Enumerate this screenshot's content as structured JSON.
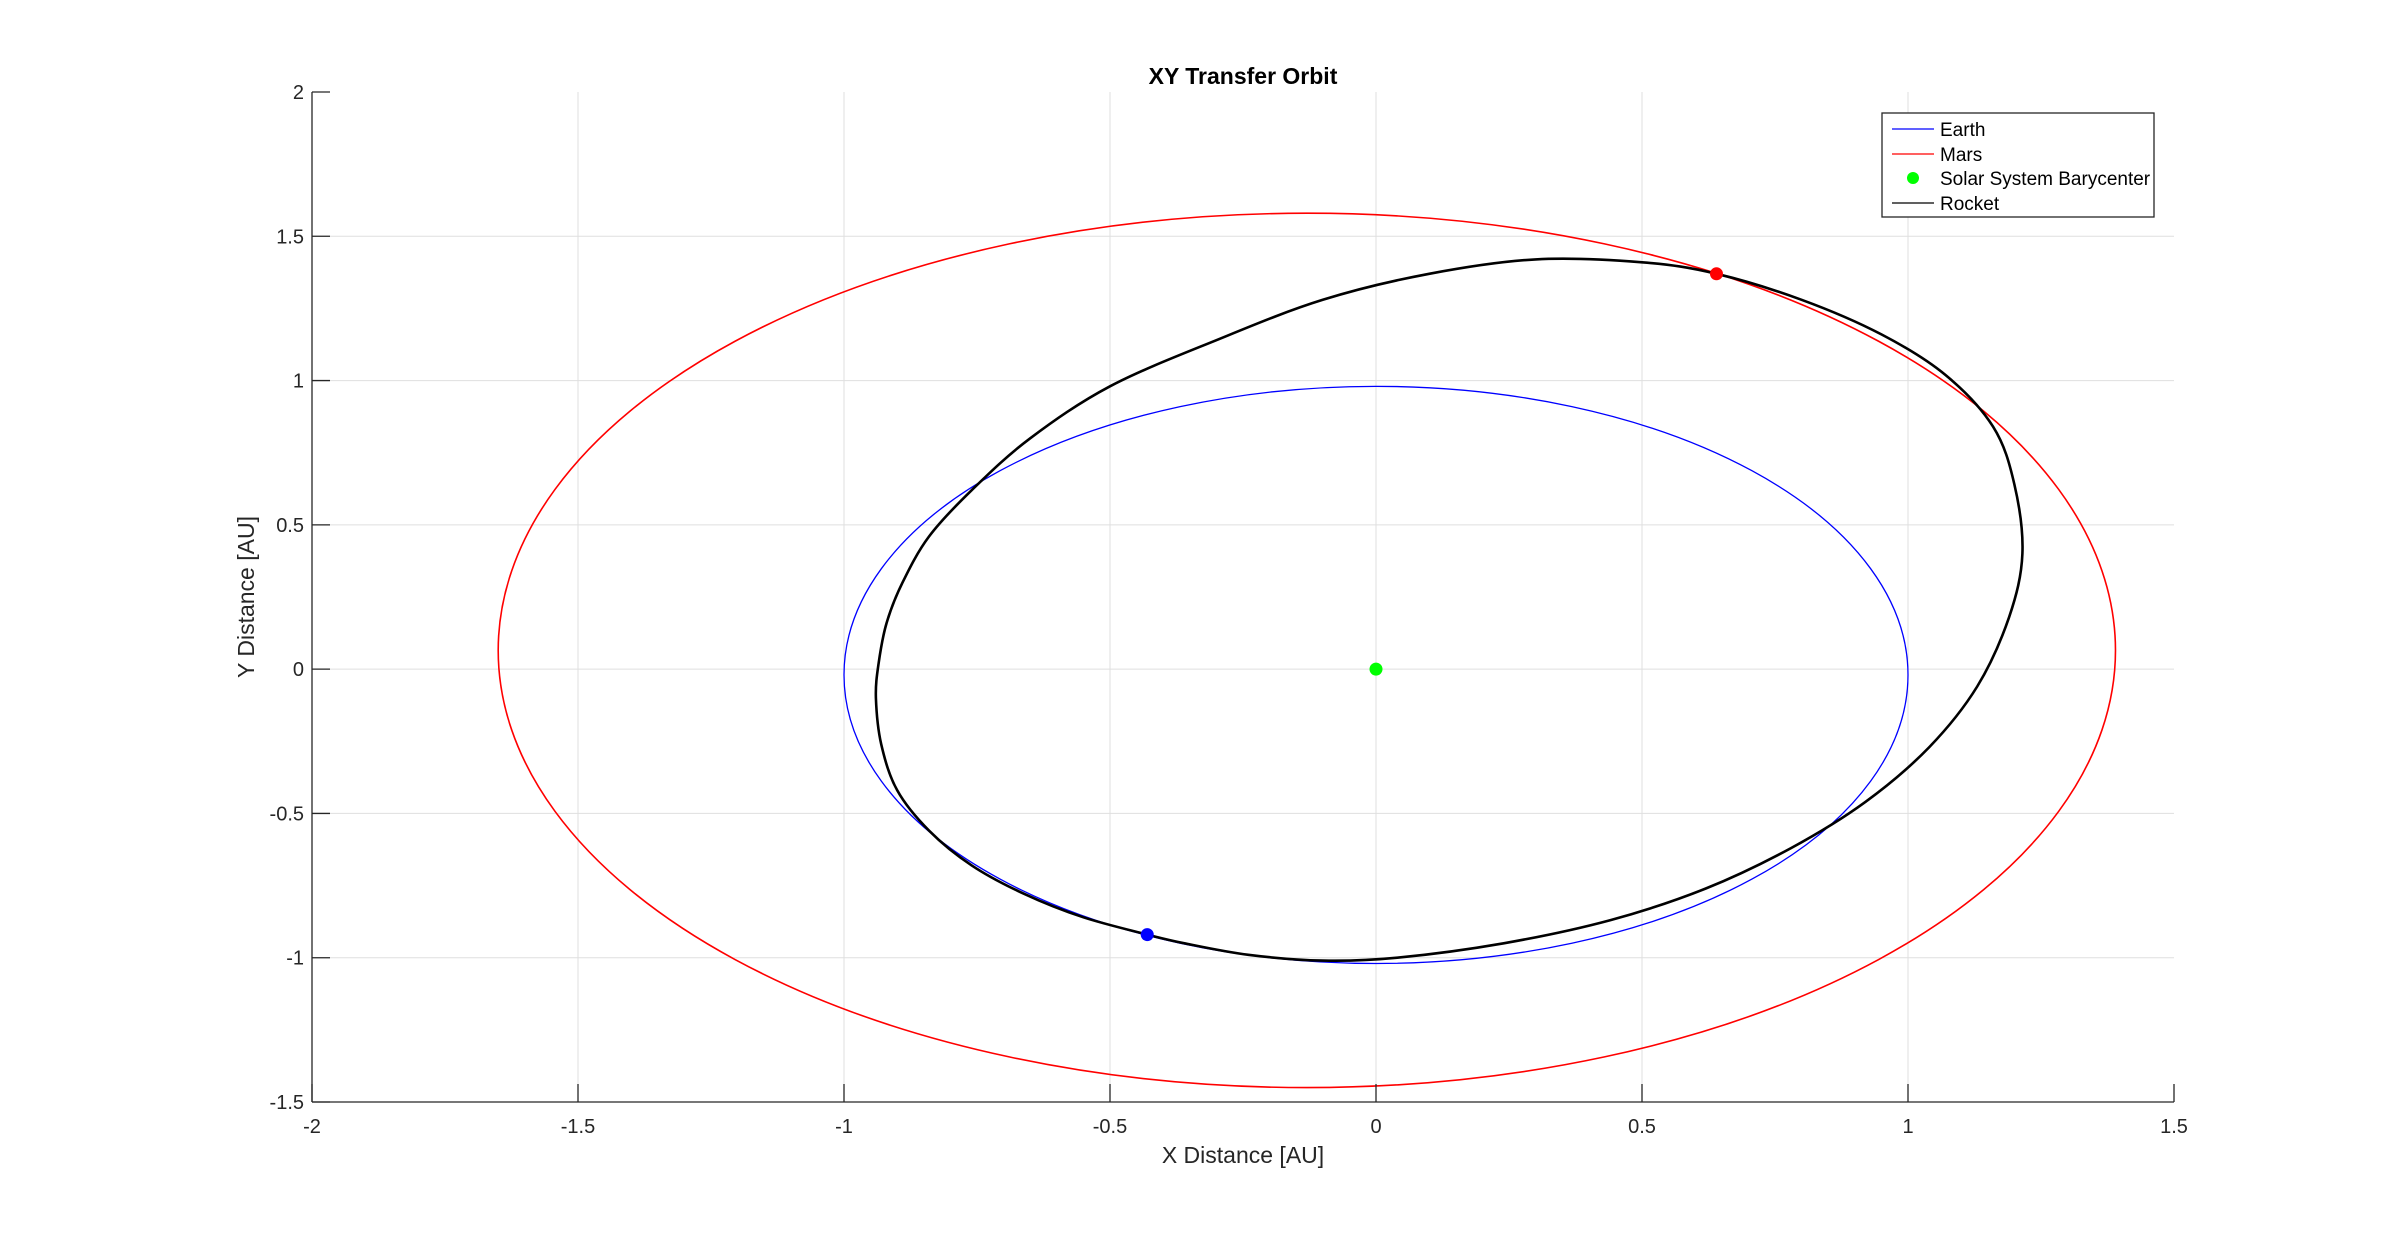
{
  "chart_data": {
    "type": "line",
    "title": "XY Transfer Orbit",
    "xlabel": "X Distance [AU]",
    "ylabel": "Y Distance [AU]",
    "xlim": [
      -2,
      1.5
    ],
    "ylim": [
      -1.5,
      2
    ],
    "xticks": [
      -2,
      -1.5,
      -1,
      -0.5,
      0,
      0.5,
      1,
      1.5
    ],
    "xtick_labels": [
      "-2",
      "-1.5",
      "-1",
      "-0.5",
      "0",
      "0.5",
      "1",
      "1.5"
    ],
    "yticks": [
      -1.5,
      -1,
      -0.5,
      0,
      0.5,
      1,
      1.5,
      2
    ],
    "ytick_labels": [
      "-1.5",
      "-1",
      "-0.5",
      "0",
      "0.5",
      "1",
      "1.5",
      "2"
    ],
    "grid": true,
    "legend_position": "top-right",
    "legend": [
      "Earth",
      "Mars",
      "Solar System Barycenter",
      "Rocket"
    ],
    "series": [
      {
        "name": "Earth",
        "kind": "orbit",
        "color": "#0000ff",
        "center": [
          0.0,
          -0.02
        ],
        "semi_axes": [
          1.0,
          1.0
        ]
      },
      {
        "name": "Mars",
        "kind": "orbit",
        "color": "#ff0000",
        "center": [
          -0.13,
          0.065
        ],
        "semi_axes": [
          1.52,
          1.515
        ]
      },
      {
        "name": "Solar System Barycenter",
        "kind": "point",
        "color": "#00ff00",
        "point": [
          0,
          0
        ]
      },
      {
        "name": "Rocket",
        "kind": "path",
        "color": "#000000",
        "points": [
          [
            -0.43,
            -0.92
          ],
          [
            -0.55,
            -0.86
          ],
          [
            -0.66,
            -0.78
          ],
          [
            -0.76,
            -0.68
          ],
          [
            -0.84,
            -0.56
          ],
          [
            -0.9,
            -0.42
          ],
          [
            -0.93,
            -0.26
          ],
          [
            -0.94,
            -0.1
          ],
          [
            -0.935,
            0.02
          ],
          [
            -0.92,
            0.16
          ],
          [
            -0.89,
            0.3
          ],
          [
            -0.84,
            0.46
          ],
          [
            -0.76,
            0.62
          ],
          [
            -0.65,
            0.8
          ],
          [
            -0.5,
            0.98
          ],
          [
            -0.3,
            1.14
          ],
          [
            -0.1,
            1.28
          ],
          [
            0.1,
            1.37
          ],
          [
            0.3,
            1.42
          ],
          [
            0.5,
            1.41
          ],
          [
            0.64,
            1.37
          ],
          [
            0.8,
            1.28
          ],
          [
            0.95,
            1.16
          ],
          [
            1.07,
            1.02
          ],
          [
            1.16,
            0.84
          ],
          [
            1.2,
            0.64
          ],
          [
            1.215,
            0.4
          ],
          [
            1.19,
            0.18
          ],
          [
            1.13,
            -0.06
          ],
          [
            1.04,
            -0.27
          ],
          [
            0.92,
            -0.46
          ],
          [
            0.78,
            -0.62
          ],
          [
            0.62,
            -0.76
          ],
          [
            0.44,
            -0.87
          ],
          [
            0.24,
            -0.95
          ],
          [
            0.04,
            -1.0
          ],
          [
            -0.1,
            -1.01
          ],
          [
            -0.24,
            -0.99
          ],
          [
            -0.36,
            -0.95
          ],
          [
            -0.43,
            -0.92
          ]
        ]
      }
    ],
    "markers": [
      {
        "name": "Earth position",
        "color": "#0000ff",
        "point": [
          -0.43,
          -0.92
        ]
      },
      {
        "name": "Mars position",
        "color": "#ff0000",
        "point": [
          0.64,
          1.37
        ]
      }
    ]
  }
}
